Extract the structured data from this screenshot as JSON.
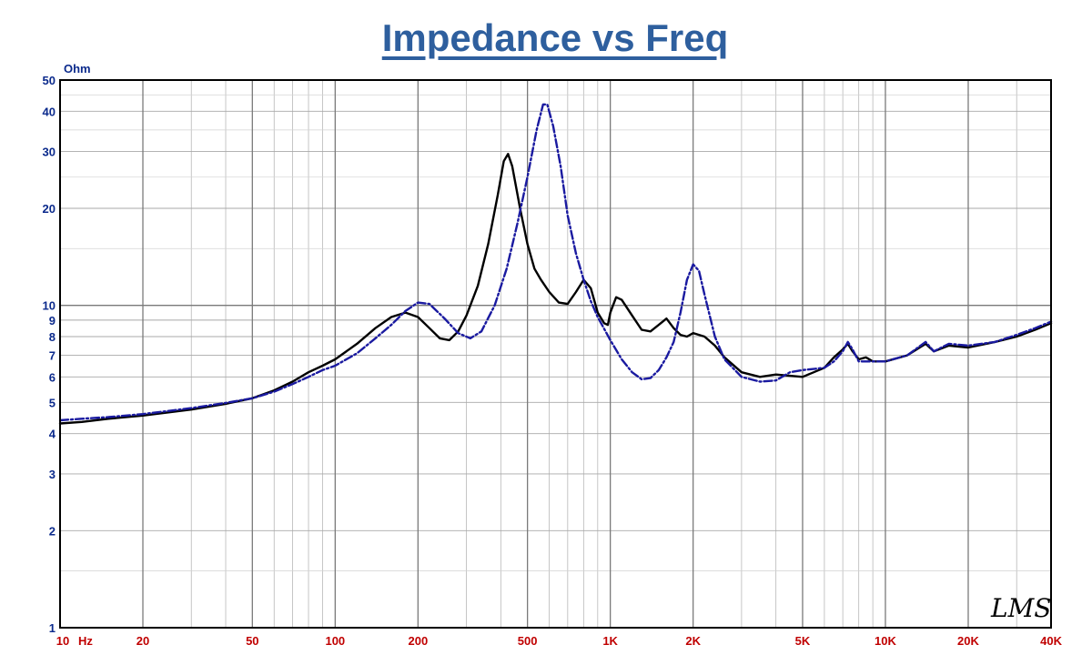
{
  "chart_data": {
    "type": "line",
    "title": "Impedance vs Freq",
    "ylabel": "Ohm",
    "xlabel": "",
    "x_scale": "log",
    "y_scale": "log",
    "xlim": [
      10,
      40000
    ],
    "ylim": [
      1,
      50
    ],
    "grid": true,
    "x_ticks": [
      {
        "v": 10,
        "label": "10"
      },
      {
        "v": 20,
        "label": "20"
      },
      {
        "v": 50,
        "label": "50"
      },
      {
        "v": 100,
        "label": "100"
      },
      {
        "v": 200,
        "label": "200"
      },
      {
        "v": 500,
        "label": "500"
      },
      {
        "v": 1000,
        "label": "1K"
      },
      {
        "v": 2000,
        "label": "2K"
      },
      {
        "v": 5000,
        "label": "5K"
      },
      {
        "v": 10000,
        "label": "10K"
      },
      {
        "v": 20000,
        "label": "20K"
      },
      {
        "v": 40000,
        "label": "40K"
      }
    ],
    "x_unit_label": "Hz",
    "y_ticks": [
      {
        "v": 1,
        "label": "1"
      },
      {
        "v": 2,
        "label": "2"
      },
      {
        "v": 3,
        "label": "3"
      },
      {
        "v": 4,
        "label": "4"
      },
      {
        "v": 5,
        "label": "5"
      },
      {
        "v": 6,
        "label": "6"
      },
      {
        "v": 7,
        "label": "7"
      },
      {
        "v": 8,
        "label": "8"
      },
      {
        "v": 9,
        "label": "9"
      },
      {
        "v": 10,
        "label": "10"
      },
      {
        "v": 20,
        "label": "20"
      },
      {
        "v": 30,
        "label": "30"
      },
      {
        "v": 40,
        "label": "40"
      },
      {
        "v": 50,
        "label": "50"
      }
    ],
    "series": [
      {
        "color": "#000000",
        "dashed": false,
        "points": [
          [
            10,
            4.3
          ],
          [
            12,
            4.35
          ],
          [
            15,
            4.45
          ],
          [
            20,
            4.55
          ],
          [
            30,
            4.75
          ],
          [
            40,
            4.95
          ],
          [
            50,
            5.15
          ],
          [
            60,
            5.45
          ],
          [
            70,
            5.8
          ],
          [
            80,
            6.2
          ],
          [
            90,
            6.5
          ],
          [
            100,
            6.8
          ],
          [
            120,
            7.6
          ],
          [
            140,
            8.5
          ],
          [
            160,
            9.2
          ],
          [
            180,
            9.5
          ],
          [
            200,
            9.2
          ],
          [
            220,
            8.5
          ],
          [
            240,
            7.9
          ],
          [
            260,
            7.8
          ],
          [
            280,
            8.3
          ],
          [
            300,
            9.3
          ],
          [
            330,
            11.5
          ],
          [
            360,
            15.5
          ],
          [
            390,
            22
          ],
          [
            410,
            28
          ],
          [
            425,
            29.5
          ],
          [
            440,
            27
          ],
          [
            470,
            20
          ],
          [
            500,
            15.5
          ],
          [
            530,
            13
          ],
          [
            560,
            12
          ],
          [
            600,
            11
          ],
          [
            650,
            10.2
          ],
          [
            700,
            10.1
          ],
          [
            750,
            11
          ],
          [
            800,
            12
          ],
          [
            850,
            11.3
          ],
          [
            900,
            9.5
          ],
          [
            950,
            8.8
          ],
          [
            980,
            8.7
          ],
          [
            1000,
            9.5
          ],
          [
            1050,
            10.6
          ],
          [
            1100,
            10.4
          ],
          [
            1200,
            9.3
          ],
          [
            1300,
            8.4
          ],
          [
            1400,
            8.3
          ],
          [
            1500,
            8.7
          ],
          [
            1600,
            9.1
          ],
          [
            1700,
            8.5
          ],
          [
            1800,
            8.1
          ],
          [
            1900,
            8.0
          ],
          [
            2000,
            8.2
          ],
          [
            2200,
            8.0
          ],
          [
            2400,
            7.5
          ],
          [
            2600,
            6.9
          ],
          [
            3000,
            6.2
          ],
          [
            3500,
            6.0
          ],
          [
            4000,
            6.1
          ],
          [
            5000,
            6.0
          ],
          [
            6000,
            6.4
          ],
          [
            6500,
            6.9
          ],
          [
            7000,
            7.3
          ],
          [
            7300,
            7.6
          ],
          [
            7600,
            7.2
          ],
          [
            8000,
            6.8
          ],
          [
            8500,
            6.9
          ],
          [
            9000,
            6.7
          ],
          [
            10000,
            6.7
          ],
          [
            12000,
            7.0
          ],
          [
            14000,
            7.6
          ],
          [
            15000,
            7.2
          ],
          [
            17000,
            7.5
          ],
          [
            20000,
            7.4
          ],
          [
            25000,
            7.7
          ],
          [
            30000,
            8.0
          ],
          [
            35000,
            8.4
          ],
          [
            40000,
            8.8
          ]
        ]
      },
      {
        "color": "#1a1aa0",
        "dashed": true,
        "points": [
          [
            10,
            4.4
          ],
          [
            12,
            4.45
          ],
          [
            15,
            4.5
          ],
          [
            20,
            4.6
          ],
          [
            30,
            4.8
          ],
          [
            40,
            4.98
          ],
          [
            50,
            5.15
          ],
          [
            60,
            5.4
          ],
          [
            70,
            5.7
          ],
          [
            80,
            6.0
          ],
          [
            90,
            6.3
          ],
          [
            100,
            6.5
          ],
          [
            120,
            7.1
          ],
          [
            140,
            7.9
          ],
          [
            160,
            8.7
          ],
          [
            180,
            9.6
          ],
          [
            200,
            10.2
          ],
          [
            220,
            10.1
          ],
          [
            250,
            9.1
          ],
          [
            280,
            8.2
          ],
          [
            310,
            7.9
          ],
          [
            340,
            8.3
          ],
          [
            380,
            10
          ],
          [
            420,
            13
          ],
          [
            460,
            18
          ],
          [
            500,
            25
          ],
          [
            540,
            35
          ],
          [
            570,
            42
          ],
          [
            590,
            42
          ],
          [
            620,
            36
          ],
          [
            660,
            27
          ],
          [
            700,
            19
          ],
          [
            750,
            14.5
          ],
          [
            800,
            12
          ],
          [
            850,
            10.3
          ],
          [
            900,
            9.2
          ],
          [
            1000,
            7.8
          ],
          [
            1100,
            6.8
          ],
          [
            1200,
            6.2
          ],
          [
            1300,
            5.9
          ],
          [
            1400,
            5.95
          ],
          [
            1500,
            6.3
          ],
          [
            1600,
            6.9
          ],
          [
            1700,
            7.7
          ],
          [
            1800,
            9.5
          ],
          [
            1900,
            12
          ],
          [
            2000,
            13.4
          ],
          [
            2100,
            12.8
          ],
          [
            2200,
            10.8
          ],
          [
            2400,
            8.0
          ],
          [
            2600,
            6.8
          ],
          [
            3000,
            6.0
          ],
          [
            3500,
            5.8
          ],
          [
            4000,
            5.85
          ],
          [
            4500,
            6.2
          ],
          [
            5000,
            6.3
          ],
          [
            6000,
            6.4
          ],
          [
            6500,
            6.7
          ],
          [
            7000,
            7.2
          ],
          [
            7300,
            7.7
          ],
          [
            7600,
            7.3
          ],
          [
            8000,
            6.7
          ],
          [
            9000,
            6.7
          ],
          [
            10000,
            6.7
          ],
          [
            12000,
            7.0
          ],
          [
            14000,
            7.7
          ],
          [
            15000,
            7.2
          ],
          [
            17000,
            7.6
          ],
          [
            20000,
            7.5
          ],
          [
            25000,
            7.7
          ],
          [
            30000,
            8.1
          ],
          [
            35000,
            8.5
          ],
          [
            40000,
            8.9
          ]
        ]
      }
    ]
  },
  "watermark": "LMS"
}
